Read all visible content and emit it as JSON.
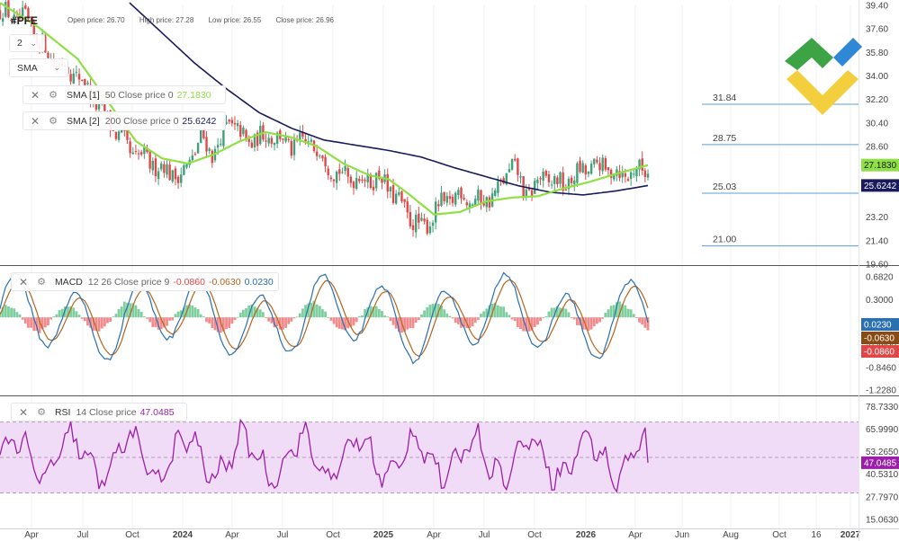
{
  "symbol": "#PFE",
  "ohlc": {
    "open": "Open price: 26.70",
    "high": "High price: 27.28",
    "low": "Low price: 26.55",
    "close": "Close price: 26.96"
  },
  "controls": {
    "stepper_value": "2",
    "indicator_select": "SMA"
  },
  "sma1": {
    "name": "SMA [1]",
    "params": "50 Close price 0",
    "value": "27.1830"
  },
  "sma2": {
    "name": "SMA [2]",
    "params": "200 Close price 0",
    "value": "25.6242"
  },
  "macd": {
    "name": "MACD",
    "params": "12 26 Close price 9",
    "v1": "-0.0860",
    "v2": "-0.0630",
    "v3": "0.0230"
  },
  "rsi": {
    "name": "RSI",
    "params": "14 Close price",
    "value": "47.0485"
  },
  "colors": {
    "sma50": "#8fe043",
    "sma200": "#1a1a5e",
    "candle_up": "#3fa07a",
    "candle_down": "#e04848",
    "macd_line": "#2a6fb0",
    "signal_line": "#b5651d",
    "rsi_line": "#9b1fa8",
    "rsi_band": "#f1dcf7"
  },
  "chart_data": {
    "type": "candlestick",
    "x_ticks": [
      "Apr",
      "Jul",
      "Oct",
      "2024",
      "Apr",
      "Jul",
      "Oct",
      "2025",
      "Apr",
      "Jul",
      "Oct",
      "2026",
      "Apr",
      "Jun",
      "Aug",
      "Oct",
      "16",
      "2027"
    ],
    "price_axis": {
      "ticks": [
        "39.40",
        "37.60",
        "35.80",
        "34.00",
        "32.20",
        "30.40",
        "28.60",
        "23.20",
        "21.40",
        "19.60"
      ],
      "ylim": [
        19.6,
        39.4
      ],
      "levels": [
        31.84,
        28.75,
        25.03,
        21.0
      ],
      "level_labels": [
        "31.84",
        "28.75",
        "25.03",
        "21.00"
      ],
      "last_sma50_label": "27.1830",
      "last_sma200_label": "25.6242"
    },
    "price_anchors": [
      {
        "t": 0.0,
        "v": 38.9
      },
      {
        "t": 0.04,
        "v": 38.2
      },
      {
        "t": 0.08,
        "v": 35.3
      },
      {
        "t": 0.12,
        "v": 34.1
      },
      {
        "t": 0.16,
        "v": 31.1
      },
      {
        "t": 0.2,
        "v": 28.2
      },
      {
        "t": 0.24,
        "v": 27.2
      },
      {
        "t": 0.28,
        "v": 26.3
      },
      {
        "t": 0.31,
        "v": 29.2
      },
      {
        "t": 0.33,
        "v": 28.1
      },
      {
        "t": 0.355,
        "v": 30.6
      },
      {
        "t": 0.38,
        "v": 28.9
      },
      {
        "t": 0.42,
        "v": 29.6
      },
      {
        "t": 0.45,
        "v": 28.6
      },
      {
        "t": 0.48,
        "v": 29.0
      },
      {
        "t": 0.52,
        "v": 26.5
      },
      {
        "t": 0.55,
        "v": 26.2
      },
      {
        "t": 0.59,
        "v": 26.1
      },
      {
        "t": 0.62,
        "v": 24.0
      },
      {
        "t": 0.65,
        "v": 22.2
      },
      {
        "t": 0.68,
        "v": 24.1
      },
      {
        "t": 0.71,
        "v": 25.0
      },
      {
        "t": 0.74,
        "v": 24.3
      },
      {
        "t": 0.77,
        "v": 25.2
      },
      {
        "t": 0.79,
        "v": 27.4
      },
      {
        "t": 0.81,
        "v": 24.9
      },
      {
        "t": 0.84,
        "v": 26.2
      },
      {
        "t": 0.87,
        "v": 25.6
      },
      {
        "t": 0.9,
        "v": 26.8
      },
      {
        "t": 0.93,
        "v": 27.1
      },
      {
        "t": 0.96,
        "v": 26.4
      },
      {
        "t": 1.0,
        "v": 27.0
      }
    ],
    "sma50_anchors": [
      {
        "t": 0.0,
        "v": 39.6
      },
      {
        "t": 0.06,
        "v": 37.7
      },
      {
        "t": 0.12,
        "v": 35.3
      },
      {
        "t": 0.17,
        "v": 31.8
      },
      {
        "t": 0.21,
        "v": 29.0
      },
      {
        "t": 0.25,
        "v": 27.7
      },
      {
        "t": 0.29,
        "v": 27.3
      },
      {
        "t": 0.33,
        "v": 28.0
      },
      {
        "t": 0.37,
        "v": 29.0
      },
      {
        "t": 0.41,
        "v": 29.7
      },
      {
        "t": 0.45,
        "v": 29.3
      },
      {
        "t": 0.49,
        "v": 28.6
      },
      {
        "t": 0.53,
        "v": 27.3
      },
      {
        "t": 0.57,
        "v": 26.4
      },
      {
        "t": 0.6,
        "v": 26.1
      },
      {
        "t": 0.63,
        "v": 25.0
      },
      {
        "t": 0.67,
        "v": 23.4
      },
      {
        "t": 0.71,
        "v": 23.6
      },
      {
        "t": 0.75,
        "v": 24.4
      },
      {
        "t": 0.79,
        "v": 24.7
      },
      {
        "t": 0.83,
        "v": 24.8
      },
      {
        "t": 0.87,
        "v": 25.4
      },
      {
        "t": 0.91,
        "v": 25.9
      },
      {
        "t": 0.95,
        "v": 26.5
      },
      {
        "t": 1.0,
        "v": 27.18
      }
    ],
    "sma200_anchors": [
      {
        "t": 0.2,
        "v": 39.6
      },
      {
        "t": 0.25,
        "v": 37.3
      },
      {
        "t": 0.3,
        "v": 35.0
      },
      {
        "t": 0.35,
        "v": 33.0
      },
      {
        "t": 0.4,
        "v": 31.2
      },
      {
        "t": 0.45,
        "v": 30.0
      },
      {
        "t": 0.5,
        "v": 29.1
      },
      {
        "t": 0.55,
        "v": 28.7
      },
      {
        "t": 0.6,
        "v": 28.3
      },
      {
        "t": 0.65,
        "v": 27.8
      },
      {
        "t": 0.7,
        "v": 27.0
      },
      {
        "t": 0.75,
        "v": 26.3
      },
      {
        "t": 0.8,
        "v": 25.6
      },
      {
        "t": 0.85,
        "v": 25.1
      },
      {
        "t": 0.9,
        "v": 24.9
      },
      {
        "t": 0.95,
        "v": 25.2
      },
      {
        "t": 1.0,
        "v": 25.62
      }
    ],
    "macd_axis": {
      "ticks": [
        "0.6820",
        "0.3000",
        "-0.4600",
        "-0.8460",
        "-1.2280"
      ],
      "ylim": [
        -1.3,
        0.85
      ]
    },
    "rsi_axis": {
      "ticks": [
        "78.7330",
        "65.9990",
        "53.2650",
        "40.5310",
        "27.7970",
        "15.0630"
      ],
      "ylim": [
        12.0,
        84.0
      ],
      "band": [
        30,
        70
      ],
      "mid": 50
    }
  }
}
